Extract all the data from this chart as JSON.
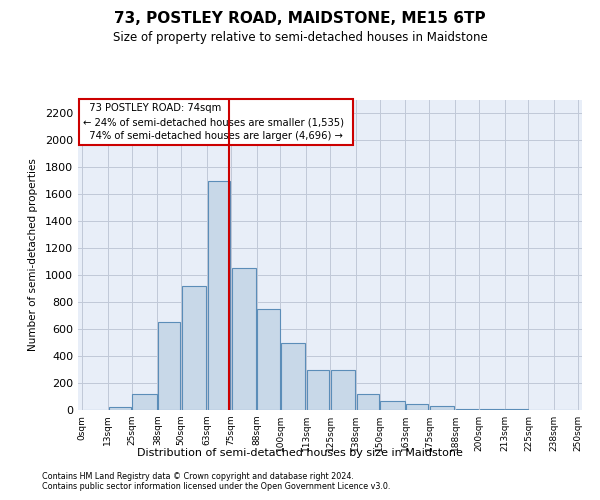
{
  "title": "73, POSTLEY ROAD, MAIDSTONE, ME15 6TP",
  "subtitle": "Size of property relative to semi-detached houses in Maidstone",
  "xlabel": "Distribution of semi-detached houses by size in Maidstone",
  "ylabel": "Number of semi-detached properties",
  "footnote1": "Contains HM Land Registry data © Crown copyright and database right 2024.",
  "footnote2": "Contains public sector information licensed under the Open Government Licence v3.0.",
  "annotation_title": "73 POSTLEY ROAD: 74sqm",
  "annotation_line1": "← 24% of semi-detached houses are smaller (1,535)",
  "annotation_line2": "74% of semi-detached houses are larger (4,696) →",
  "property_size": 74,
  "bins": [
    0,
    13,
    25,
    38,
    50,
    63,
    75,
    88,
    100,
    113,
    125,
    138,
    150,
    163,
    175,
    188,
    200,
    213,
    225,
    238,
    250
  ],
  "bar_heights": [
    0,
    20,
    120,
    650,
    920,
    1700,
    1050,
    750,
    500,
    300,
    300,
    120,
    65,
    45,
    30,
    10,
    5,
    5,
    2,
    2
  ],
  "tick_labels": [
    "0sqm",
    "13sqm",
    "25sqm",
    "38sqm",
    "50sqm",
    "63sqm",
    "75sqm",
    "88sqm",
    "100sqm",
    "113sqm",
    "125sqm",
    "138sqm",
    "150sqm",
    "163sqm",
    "175sqm",
    "188sqm",
    "200sqm",
    "213sqm",
    "225sqm",
    "238sqm",
    "250sqm"
  ],
  "bar_color": "#c8d8e8",
  "bar_edge_color": "#5b8db8",
  "vline_color": "#cc0000",
  "annotation_box_edge": "#cc0000",
  "ylim": [
    0,
    2300
  ],
  "yticks": [
    0,
    200,
    400,
    600,
    800,
    1000,
    1200,
    1400,
    1600,
    1800,
    2000,
    2200
  ],
  "grid_color": "#c0c8d8",
  "bg_color": "#e8eef8"
}
